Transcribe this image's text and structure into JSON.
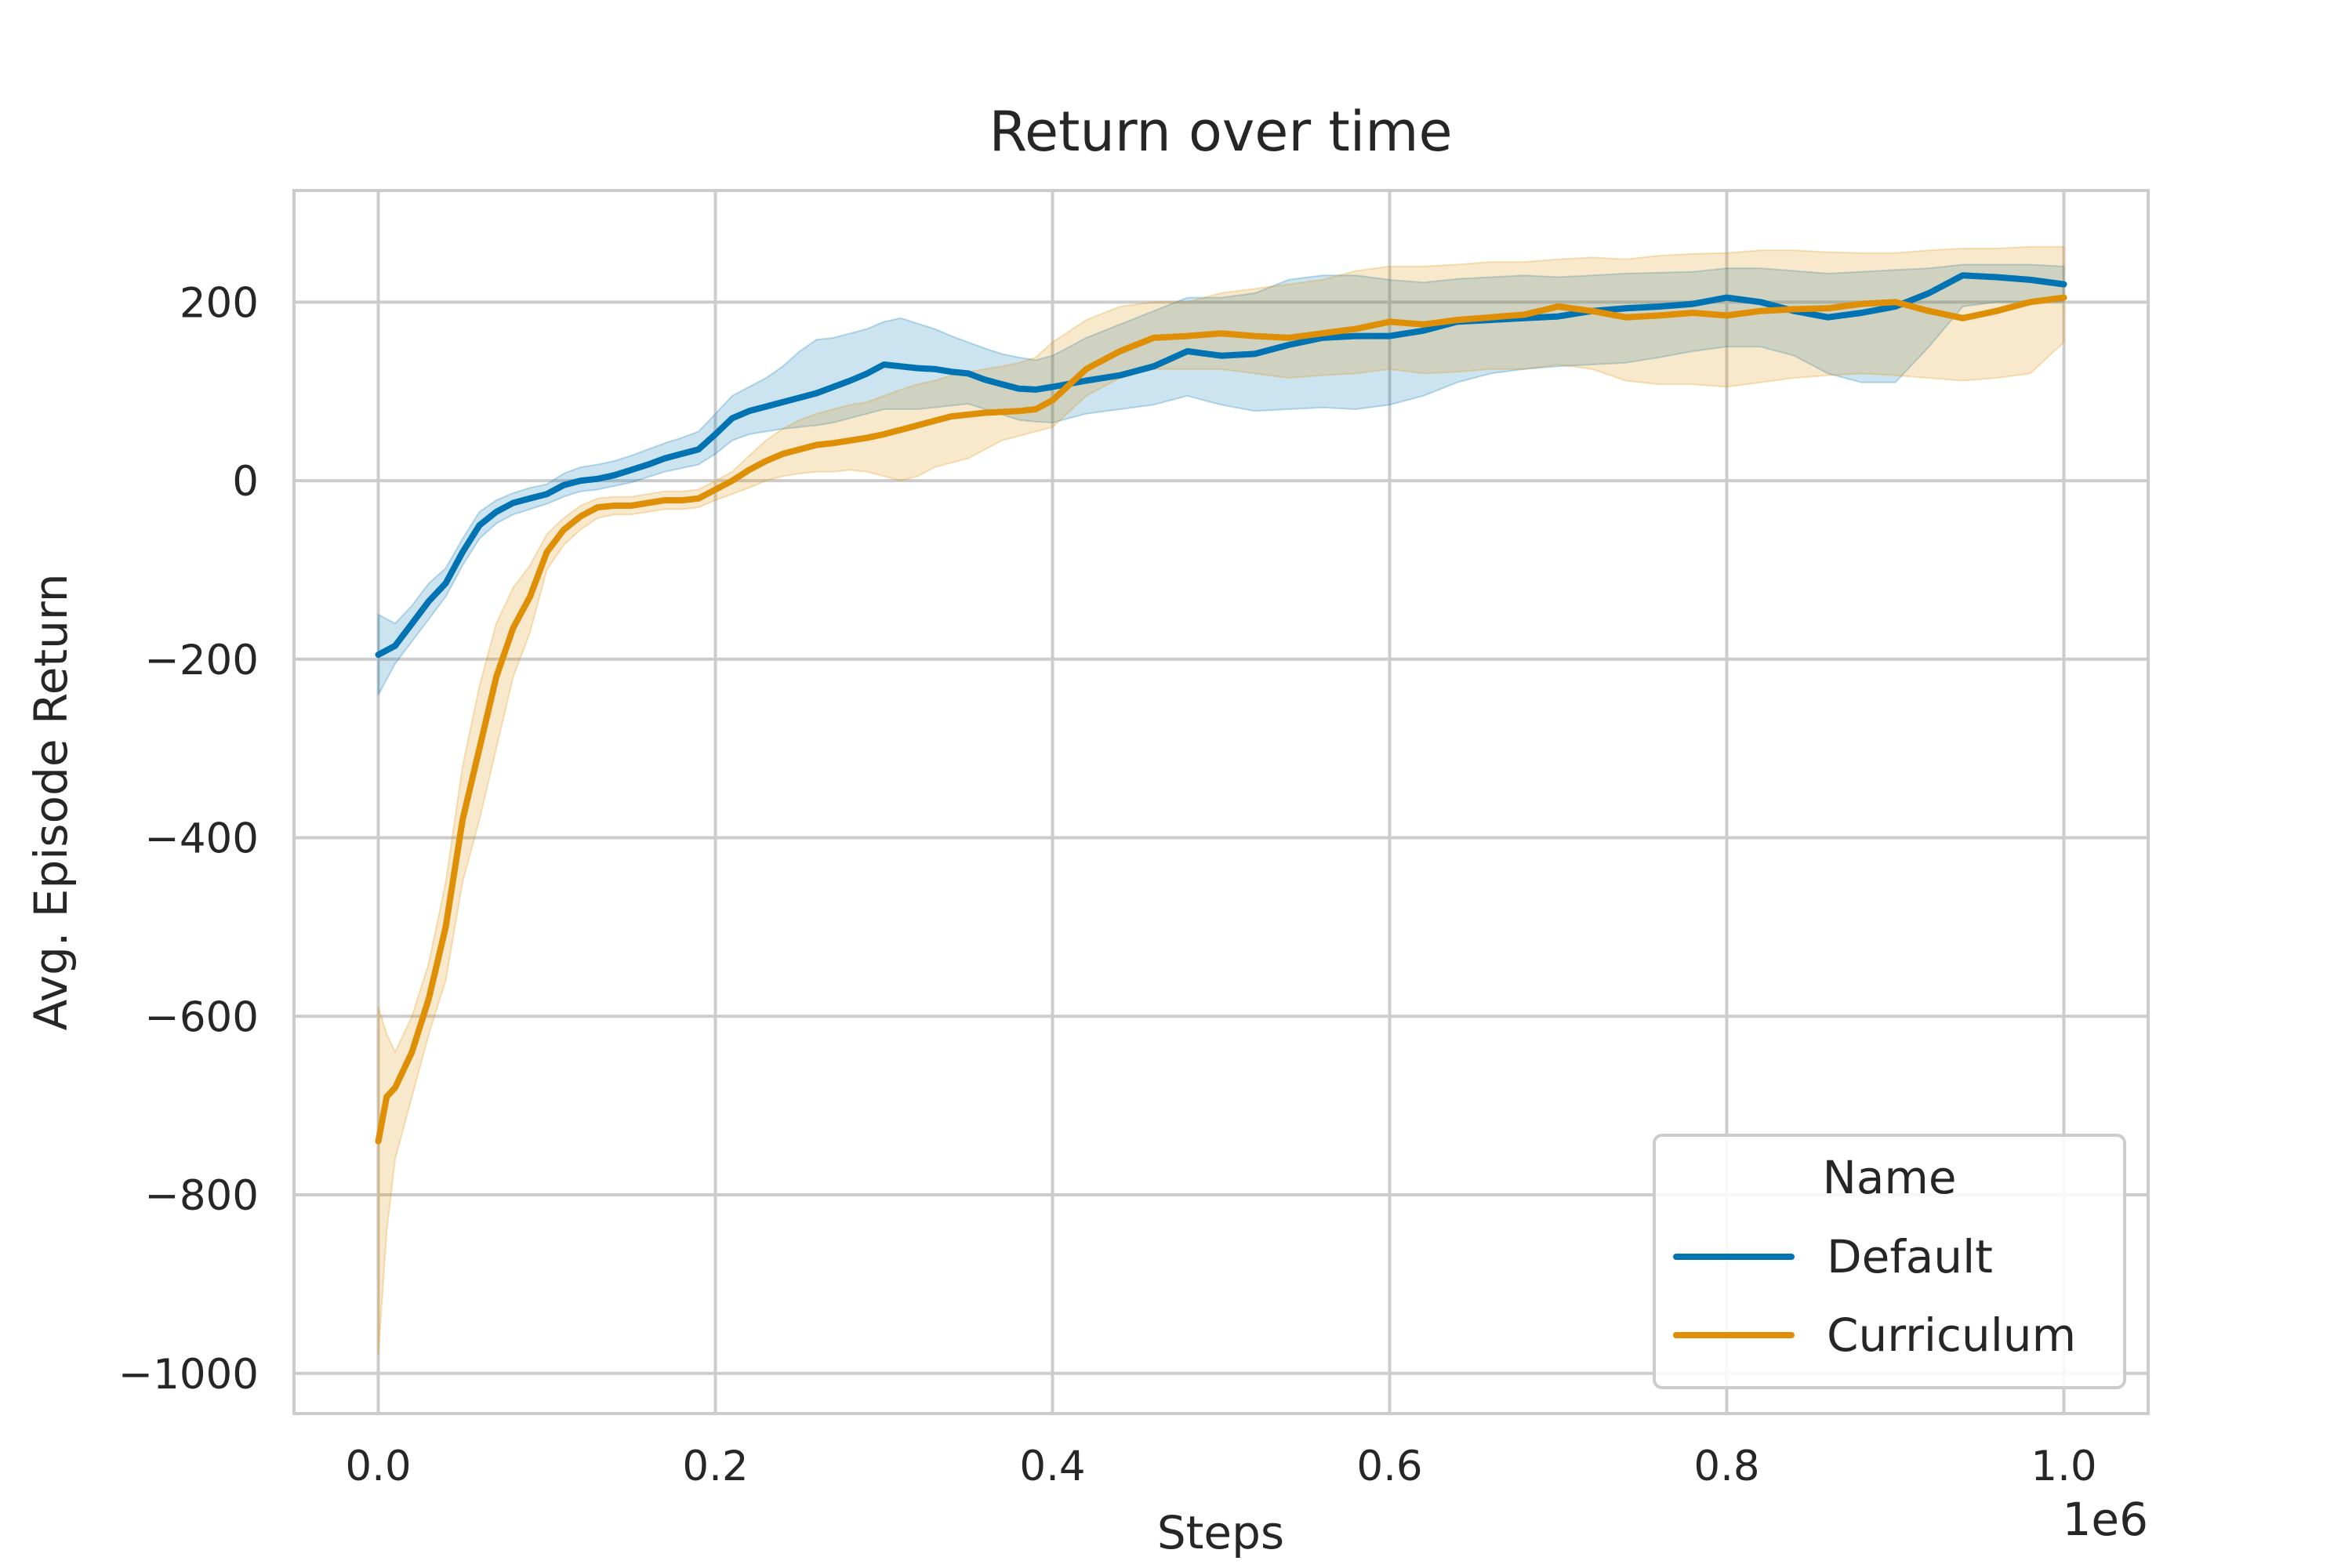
{
  "chart_data": {
    "type": "line",
    "title": "Return over time",
    "xlabel": "Steps",
    "ylabel": "Avg. Episode Return",
    "x_offset_label": "1e6",
    "xlim": [
      -0.05,
      1.05
    ],
    "ylim": [
      -1045,
      325
    ],
    "x_ticks": [
      0.0,
      0.2,
      0.4,
      0.6,
      0.8,
      1.0
    ],
    "x_tick_labels": [
      "0.0",
      "0.2",
      "0.4",
      "0.6",
      "0.8",
      "1.0"
    ],
    "y_ticks": [
      -1000,
      -800,
      -600,
      -400,
      -200,
      0,
      200
    ],
    "y_tick_labels": [
      "−1000",
      "−800",
      "−600",
      "−400",
      "−200",
      "0",
      "200"
    ],
    "grid": true,
    "legend": {
      "title": "Name",
      "placement": "lower-right"
    },
    "series": [
      {
        "name": "Default",
        "color": "#0173b2",
        "x": [
          0.0,
          0.01,
          0.02,
          0.03,
          0.04,
          0.05,
          0.06,
          0.07,
          0.08,
          0.09,
          0.1,
          0.11,
          0.12,
          0.13,
          0.14,
          0.15,
          0.16,
          0.17,
          0.18,
          0.19,
          0.2,
          0.21,
          0.22,
          0.23,
          0.24,
          0.25,
          0.26,
          0.27,
          0.28,
          0.29,
          0.3,
          0.31,
          0.32,
          0.33,
          0.34,
          0.35,
          0.36,
          0.37,
          0.38,
          0.39,
          0.4,
          0.42,
          0.44,
          0.46,
          0.48,
          0.5,
          0.52,
          0.54,
          0.56,
          0.58,
          0.6,
          0.62,
          0.64,
          0.66,
          0.68,
          0.7,
          0.72,
          0.74,
          0.76,
          0.78,
          0.8,
          0.82,
          0.84,
          0.86,
          0.88,
          0.9,
          0.92,
          0.94,
          0.96,
          0.98,
          1.0
        ],
        "y": [
          -195,
          -185,
          -160,
          -135,
          -115,
          -80,
          -50,
          -35,
          -25,
          -20,
          -15,
          -5,
          0,
          2,
          6,
          12,
          18,
          25,
          30,
          35,
          52,
          70,
          78,
          83,
          88,
          93,
          98,
          105,
          112,
          120,
          130,
          128,
          126,
          125,
          122,
          120,
          113,
          108,
          103,
          102,
          105,
          112,
          118,
          128,
          145,
          140,
          142,
          152,
          160,
          162,
          162,
          168,
          178,
          180,
          182,
          184,
          190,
          193,
          195,
          198,
          205,
          200,
          190,
          183,
          188,
          195,
          210,
          230,
          228,
          225,
          220
        ],
        "lower": [
          -240,
          -205,
          -180,
          -155,
          -130,
          -95,
          -65,
          -48,
          -38,
          -32,
          -26,
          -18,
          -12,
          -10,
          -6,
          -2,
          4,
          10,
          14,
          18,
          30,
          45,
          52,
          55,
          58,
          60,
          62,
          65,
          70,
          75,
          80,
          80,
          80,
          82,
          84,
          86,
          80,
          74,
          68,
          66,
          65,
          75,
          80,
          85,
          95,
          85,
          78,
          80,
          82,
          80,
          85,
          95,
          110,
          120,
          125,
          128,
          130,
          132,
          138,
          145,
          150,
          150,
          140,
          120,
          110,
          110,
          150,
          195,
          200,
          200,
          200
        ],
        "upper": [
          -150,
          -160,
          -140,
          -115,
          -98,
          -65,
          -35,
          -22,
          -14,
          -8,
          -4,
          8,
          15,
          18,
          22,
          28,
          35,
          42,
          48,
          55,
          75,
          95,
          105,
          115,
          128,
          145,
          158,
          160,
          165,
          170,
          178,
          182,
          176,
          170,
          162,
          155,
          148,
          142,
          138,
          135,
          140,
          160,
          175,
          190,
          205,
          205,
          210,
          225,
          230,
          230,
          225,
          222,
          226,
          228,
          230,
          228,
          230,
          232,
          233,
          234,
          238,
          238,
          235,
          232,
          234,
          236,
          238,
          242,
          242,
          242,
          240
        ]
      },
      {
        "name": "Curriculum",
        "color": "#de8f05",
        "x": [
          0.0,
          0.005,
          0.01,
          0.02,
          0.03,
          0.04,
          0.05,
          0.06,
          0.07,
          0.08,
          0.09,
          0.1,
          0.11,
          0.12,
          0.13,
          0.14,
          0.15,
          0.16,
          0.17,
          0.18,
          0.19,
          0.2,
          0.21,
          0.22,
          0.23,
          0.24,
          0.25,
          0.26,
          0.27,
          0.28,
          0.29,
          0.3,
          0.31,
          0.32,
          0.33,
          0.34,
          0.35,
          0.36,
          0.37,
          0.38,
          0.39,
          0.4,
          0.42,
          0.44,
          0.46,
          0.48,
          0.5,
          0.52,
          0.54,
          0.56,
          0.58,
          0.6,
          0.62,
          0.64,
          0.66,
          0.68,
          0.7,
          0.72,
          0.74,
          0.76,
          0.78,
          0.8,
          0.82,
          0.84,
          0.86,
          0.88,
          0.9,
          0.92,
          0.94,
          0.96,
          0.98,
          1.0
        ],
        "y": [
          -740,
          -690,
          -680,
          -640,
          -580,
          -500,
          -380,
          -300,
          -220,
          -165,
          -130,
          -80,
          -55,
          -40,
          -30,
          -28,
          -28,
          -25,
          -22,
          -22,
          -20,
          -10,
          0,
          12,
          22,
          30,
          35,
          40,
          42,
          45,
          48,
          52,
          57,
          62,
          67,
          72,
          74,
          76,
          77,
          78,
          80,
          90,
          125,
          145,
          160,
          162,
          165,
          162,
          160,
          165,
          170,
          178,
          175,
          180,
          183,
          186,
          195,
          190,
          183,
          185,
          188,
          185,
          190,
          192,
          193,
          198,
          200,
          190,
          182,
          190,
          200,
          205
        ],
        "lower": [
          -980,
          -840,
          -760,
          -690,
          -620,
          -560,
          -450,
          -380,
          -300,
          -220,
          -170,
          -100,
          -72,
          -55,
          -42,
          -38,
          -38,
          -35,
          -32,
          -32,
          -30,
          -22,
          -15,
          -8,
          0,
          5,
          8,
          10,
          10,
          12,
          10,
          5,
          0,
          5,
          15,
          20,
          25,
          35,
          45,
          50,
          55,
          60,
          95,
          115,
          125,
          125,
          125,
          120,
          115,
          118,
          120,
          125,
          120,
          122,
          125,
          125,
          130,
          125,
          112,
          108,
          108,
          105,
          110,
          115,
          118,
          120,
          118,
          115,
          112,
          115,
          120,
          155
        ],
        "upper": [
          -590,
          -620,
          -640,
          -600,
          -540,
          -450,
          -320,
          -230,
          -160,
          -120,
          -95,
          -60,
          -42,
          -28,
          -20,
          -18,
          -18,
          -15,
          -12,
          -12,
          -10,
          0,
          10,
          28,
          45,
          58,
          68,
          75,
          80,
          85,
          88,
          95,
          102,
          108,
          112,
          118,
          122,
          125,
          128,
          132,
          138,
          155,
          180,
          195,
          200,
          200,
          210,
          215,
          220,
          225,
          235,
          240,
          240,
          242,
          245,
          245,
          248,
          250,
          248,
          252,
          254,
          255,
          258,
          258,
          256,
          255,
          255,
          258,
          260,
          260,
          262,
          262
        ]
      }
    ]
  }
}
